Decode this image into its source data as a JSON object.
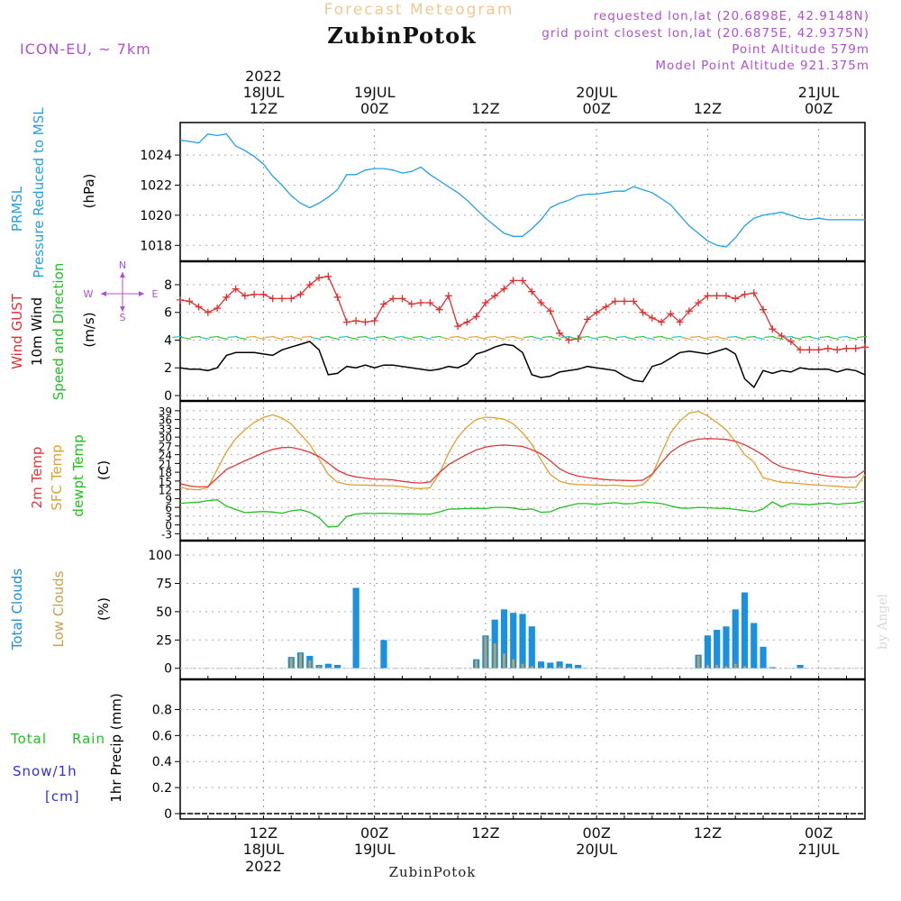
{
  "header": {
    "title": "Forecast Meteogram",
    "location": "ZubinPotok",
    "model": "ICON-EU, ~ 7km",
    "requested": "requested lon,lat (20.6898E, 42.9148N)",
    "closest": "grid point closest lon,lat (20.6875E, 42.9375N)",
    "point_alt": "Point Altitude 579m",
    "model_alt": "Model Point Altitude 921.375m",
    "footer_location": "ZubinPotok",
    "watermark": "by Angel"
  },
  "time_axis": {
    "top_labels": [
      {
        "l1": "2022",
        "l2": "18JUL",
        "l3": "12Z"
      },
      {
        "l1": "",
        "l2": "19JUL",
        "l3": "00Z"
      },
      {
        "l1": "",
        "l2": "",
        "l3": "12Z"
      },
      {
        "l1": "",
        "l2": "20JUL",
        "l3": "00Z"
      },
      {
        "l1": "",
        "l2": "",
        "l3": "12Z"
      },
      {
        "l1": "",
        "l2": "21JUL",
        "l3": "00Z"
      }
    ],
    "bottom_labels": [
      {
        "l1": "12Z",
        "l2": "18JUL",
        "l3": "2022"
      },
      {
        "l1": "00Z",
        "l2": "19JUL",
        "l3": ""
      },
      {
        "l1": "12Z",
        "l2": "",
        "l3": ""
      },
      {
        "l1": "00Z",
        "l2": "20JUL",
        "l3": ""
      },
      {
        "l1": "12Z",
        "l2": "",
        "l3": ""
      },
      {
        "l1": "00Z",
        "l2": "21JUL",
        "l3": ""
      }
    ],
    "tick_hours": [
      12,
      24,
      36,
      48,
      60,
      72
    ],
    "hour_range": [
      3,
      77
    ]
  },
  "colors": {
    "pressure": "#22a0e6",
    "gust": "#e03030",
    "wind": "#000000",
    "t2m": "#e03838",
    "sfc": "#e0a030",
    "dew": "#20c020",
    "total_clouds": "#1a90e0",
    "low_clouds": "#c8a050",
    "rain": "#20c020",
    "snow": "#3030e0",
    "violet": "#b050d0"
  },
  "chart_data": [
    {
      "type": "line",
      "panel": "pressure",
      "labels": {
        "l1": "PRMSL",
        "l2": "Pressure Reduced to MSL",
        "unit": "(hPa)"
      },
      "ylim": [
        1017.3,
        1025.8
      ],
      "yticks": [
        1018,
        1020,
        1022,
        1024
      ],
      "x": [
        3,
        4,
        5,
        6,
        7,
        8,
        9,
        10,
        11,
        12,
        13,
        14,
        15,
        16,
        17,
        18,
        19,
        20,
        21,
        22,
        23,
        24,
        25,
        26,
        27,
        28,
        29,
        30,
        31,
        32,
        33,
        34,
        35,
        36,
        37,
        38,
        39,
        40,
        41,
        42,
        43,
        44,
        45,
        46,
        47,
        48,
        49,
        50,
        51,
        52,
        53,
        54,
        55,
        56,
        57,
        58,
        59,
        60,
        61,
        62,
        63,
        64,
        65,
        66,
        67,
        68,
        69,
        70,
        71,
        72,
        73,
        74,
        75,
        76,
        77
      ],
      "values": [
        1025.0,
        1024.9,
        1024.8,
        1025.4,
        1025.3,
        1025.4,
        1024.6,
        1024.3,
        1023.9,
        1023.4,
        1022.6,
        1022.0,
        1021.3,
        1020.8,
        1020.5,
        1020.8,
        1021.2,
        1021.7,
        1022.7,
        1022.7,
        1023.0,
        1023.1,
        1023.1,
        1023.0,
        1022.8,
        1022.9,
        1023.2,
        1022.7,
        1022.3,
        1021.9,
        1021.5,
        1021.0,
        1020.4,
        1019.8,
        1019.3,
        1018.8,
        1018.6,
        1018.6,
        1019.1,
        1019.7,
        1020.5,
        1020.8,
        1021.0,
        1021.3,
        1021.4,
        1021.4,
        1021.5,
        1021.6,
        1021.6,
        1021.9,
        1021.7,
        1021.5,
        1021.1,
        1020.7,
        1020.0,
        1019.3,
        1018.8,
        1018.3,
        1018.0,
        1017.9,
        1018.5,
        1019.3,
        1019.8,
        1020.0,
        1020.1,
        1020.2,
        1020.0,
        1019.8,
        1019.7,
        1019.8,
        1019.7,
        1019.7,
        1019.7,
        1019.7,
        1019.7
      ]
    },
    {
      "type": "line",
      "panel": "wind",
      "labels": {
        "gust": "Wind GUST",
        "wind": "10m Wind",
        "speed": "Speed and Direction",
        "unit": "(m/s)",
        "compass_n": "N",
        "compass_s": "S",
        "compass_w": "W",
        "compass_e": "E"
      },
      "ylim": [
        0,
        9.3
      ],
      "yticks": [
        0,
        2,
        4,
        6,
        8
      ],
      "x": [
        3,
        4,
        5,
        6,
        7,
        8,
        9,
        10,
        11,
        12,
        13,
        14,
        15,
        16,
        17,
        18,
        19,
        20,
        21,
        22,
        23,
        24,
        25,
        26,
        27,
        28,
        29,
        30,
        31,
        32,
        33,
        34,
        35,
        36,
        37,
        38,
        39,
        40,
        41,
        42,
        43,
        44,
        45,
        46,
        47,
        48,
        49,
        50,
        51,
        52,
        53,
        54,
        55,
        56,
        57,
        58,
        59,
        60,
        61,
        62,
        63,
        64,
        65,
        66,
        67,
        68,
        69,
        70,
        71,
        72,
        73,
        74,
        75,
        76,
        77
      ],
      "series": [
        {
          "name": "Wind GUST",
          "values": [
            6.9,
            6.8,
            6.4,
            6.0,
            6.3,
            7.1,
            7.7,
            7.2,
            7.3,
            7.3,
            7.0,
            7.0,
            7.0,
            7.3,
            8.0,
            8.5,
            8.6,
            7.1,
            5.3,
            5.4,
            5.3,
            5.4,
            6.6,
            7.0,
            7.0,
            6.6,
            6.7,
            6.7,
            6.2,
            7.2,
            5.0,
            5.3,
            5.7,
            6.7,
            7.2,
            7.7,
            8.3,
            8.3,
            7.5,
            6.7,
            6.1,
            4.5,
            4.0,
            4.1,
            5.5,
            6.0,
            6.4,
            6.8,
            6.8,
            6.8,
            6.0,
            5.6,
            5.3,
            5.9,
            5.3,
            6.1,
            6.7,
            7.2,
            7.2,
            7.2,
            7.0,
            7.3,
            7.4,
            6.2,
            4.8,
            4.3,
            3.9,
            3.3,
            3.3,
            3.3,
            3.4,
            3.3,
            3.4,
            3.4,
            3.5
          ]
        },
        {
          "name": "10m Wind",
          "values": [
            2.0,
            1.9,
            1.9,
            1.8,
            2.0,
            2.9,
            3.1,
            3.1,
            3.1,
            3.0,
            2.9,
            3.3,
            3.5,
            3.7,
            3.9,
            3.3,
            1.5,
            1.6,
            2.1,
            2.0,
            2.2,
            2.0,
            2.2,
            2.2,
            2.1,
            2.0,
            1.9,
            1.8,
            1.9,
            2.1,
            2.0,
            2.3,
            3.0,
            3.2,
            3.5,
            3.7,
            3.6,
            3.1,
            1.5,
            1.3,
            1.4,
            1.7,
            1.8,
            1.9,
            2.1,
            2.0,
            1.9,
            1.8,
            1.4,
            1.1,
            1.0,
            2.1,
            2.3,
            2.7,
            3.1,
            3.2,
            3.1,
            3.0,
            3.2,
            3.4,
            3.0,
            1.2,
            0.6,
            1.8,
            1.6,
            1.8,
            1.7,
            2.0,
            1.9,
            1.9,
            1.9,
            1.7,
            1.9,
            1.8,
            1.5
          ]
        }
      ]
    },
    {
      "type": "line",
      "panel": "temperature",
      "labels": {
        "t2m": "2m Temp",
        "sfc": "SFC Temp",
        "dew": "dewpt Temp",
        "unit": "(C)"
      },
      "ylim": [
        -3.5,
        40.5
      ],
      "yticks": [
        -3,
        0,
        3,
        6,
        9,
        12,
        15,
        18,
        21,
        24,
        27,
        30,
        33,
        36,
        39
      ],
      "x": [
        3,
        4,
        5,
        6,
        7,
        8,
        9,
        10,
        11,
        12,
        13,
        14,
        15,
        16,
        17,
        18,
        19,
        20,
        21,
        22,
        23,
        24,
        25,
        26,
        27,
        28,
        29,
        30,
        31,
        32,
        33,
        34,
        35,
        36,
        37,
        38,
        39,
        40,
        41,
        42,
        43,
        44,
        45,
        46,
        47,
        48,
        49,
        50,
        51,
        52,
        53,
        54,
        55,
        56,
        57,
        58,
        59,
        60,
        61,
        62,
        63,
        64,
        65,
        66,
        67,
        68,
        69,
        70,
        71,
        72,
        73,
        74,
        75,
        76,
        77
      ],
      "series": [
        {
          "name": "2m Temp",
          "values": [
            14.1,
            13.3,
            13.0,
            13.1,
            16.0,
            19.0,
            20.4,
            21.9,
            23.3,
            24.7,
            25.8,
            26.4,
            26.5,
            25.8,
            24.8,
            23.4,
            21.1,
            18.7,
            17.2,
            16.4,
            16.0,
            15.6,
            15.6,
            15.4,
            14.9,
            14.5,
            14.3,
            14.7,
            17.9,
            20.6,
            22.4,
            24.1,
            25.6,
            26.6,
            27.1,
            27.3,
            27.1,
            26.8,
            25.7,
            24.3,
            21.9,
            19.2,
            17.6,
            16.7,
            16.2,
            15.8,
            15.5,
            15.3,
            15.2,
            15.1,
            15.3,
            17.3,
            21.2,
            24.8,
            27.0,
            28.5,
            29.3,
            29.5,
            29.4,
            29.2,
            28.6,
            27.4,
            25.7,
            23.9,
            21.4,
            19.8,
            19.0,
            18.4,
            17.7,
            17.2,
            16.7,
            16.4,
            16.2,
            16.4,
            18.7
          ]
        },
        {
          "name": "SFC Temp",
          "values": [
            12.9,
            12.2,
            12.0,
            12.8,
            19.0,
            25.0,
            29.5,
            32.5,
            35.0,
            36.7,
            37.6,
            36.5,
            34.5,
            31.0,
            27.5,
            22.5,
            17.3,
            14.6,
            13.9,
            13.6,
            13.6,
            13.5,
            13.4,
            13.4,
            13.1,
            12.6,
            12.4,
            12.7,
            17.5,
            24.5,
            30.0,
            33.5,
            36.0,
            36.8,
            36.6,
            36.1,
            34.5,
            31.5,
            27.5,
            22.2,
            17.2,
            14.9,
            14.1,
            13.8,
            13.7,
            13.6,
            13.5,
            13.6,
            13.3,
            13.2,
            13.7,
            17.0,
            24.5,
            31.5,
            35.5,
            38.2,
            38.8,
            37.2,
            35.0,
            32.5,
            28.5,
            24.0,
            21.5,
            16.1,
            15.3,
            14.5,
            14.4,
            14.1,
            13.8,
            13.6,
            13.4,
            13.2,
            12.9,
            12.8,
            17.2
          ]
        },
        {
          "name": "dewpt Temp",
          "values": [
            7.4,
            7.6,
            7.8,
            8.3,
            8.6,
            6.4,
            5.3,
            4.2,
            4.4,
            4.6,
            4.4,
            4.0,
            4.8,
            5.2,
            4.3,
            2.5,
            -0.7,
            -0.5,
            2.9,
            3.7,
            4.0,
            3.9,
            4.0,
            3.9,
            3.8,
            3.8,
            3.7,
            3.7,
            4.4,
            5.4,
            5.5,
            5.6,
            5.7,
            5.6,
            6.0,
            6.0,
            5.8,
            5.2,
            5.5,
            4.3,
            4.5,
            5.8,
            6.6,
            7.3,
            7.3,
            7.0,
            7.4,
            7.6,
            7.2,
            7.3,
            7.9,
            7.6,
            7.3,
            6.5,
            5.8,
            5.7,
            6.0,
            5.9,
            5.7,
            5.7,
            5.3,
            4.9,
            4.5,
            5.5,
            7.9,
            6.2,
            7.3,
            7.1,
            6.9,
            7.2,
            7.5,
            7.0,
            7.4,
            7.5,
            8.2
          ]
        }
      ]
    },
    {
      "type": "bar",
      "panel": "clouds",
      "labels": {
        "total": "Total Clouds",
        "low": "Low Clouds",
        "unit": "(%)"
      },
      "ylim": [
        -5,
        108
      ],
      "yticks": [
        0,
        25,
        50,
        75,
        100
      ],
      "x": [
        3,
        4,
        5,
        6,
        7,
        8,
        9,
        10,
        11,
        12,
        13,
        14,
        15,
        16,
        17,
        18,
        19,
        20,
        21,
        22,
        23,
        24,
        25,
        26,
        27,
        28,
        29,
        30,
        31,
        32,
        33,
        34,
        35,
        36,
        37,
        38,
        39,
        40,
        41,
        42,
        43,
        44,
        45,
        46,
        47,
        48,
        49,
        50,
        51,
        52,
        53,
        54,
        55,
        56,
        57,
        58,
        59,
        60,
        61,
        62,
        63,
        64,
        65,
        66,
        67,
        68,
        69,
        70,
        71,
        72,
        73,
        74,
        75,
        76,
        77
      ],
      "series": [
        {
          "name": "Total Clouds",
          "values": [
            0,
            0,
            0,
            0,
            0,
            0,
            0,
            0,
            0,
            0,
            0,
            0,
            10,
            14,
            11,
            3,
            4,
            3,
            0,
            71,
            0,
            0,
            25,
            0,
            0,
            0,
            0,
            0,
            0,
            0,
            0,
            0,
            8,
            29,
            43,
            52,
            49,
            48,
            37,
            6,
            5,
            6,
            4,
            3,
            0,
            0,
            0,
            0,
            0,
            0,
            0,
            0,
            0,
            0,
            0,
            0,
            12,
            29,
            34,
            37,
            52,
            67,
            40,
            19,
            1,
            0,
            0,
            3,
            0,
            0,
            0,
            0,
            0,
            0,
            0
          ]
        },
        {
          "name": "Low Clouds",
          "values": [
            0,
            0,
            0,
            0,
            0,
            0,
            0,
            0,
            0,
            0,
            0,
            0,
            9,
            13,
            7,
            2,
            1,
            0,
            0,
            0,
            0,
            0,
            0,
            0,
            0,
            0,
            0,
            0,
            0,
            0,
            0,
            0,
            7,
            28,
            22,
            13,
            8,
            4,
            2,
            1,
            0,
            2,
            1,
            0,
            0,
            0,
            0,
            0,
            0,
            0,
            0,
            0,
            0,
            0,
            0,
            0,
            11,
            3,
            3,
            2,
            4,
            2,
            0,
            0,
            0,
            0,
            0,
            0,
            0,
            0,
            0,
            0,
            0,
            0,
            0
          ]
        }
      ]
    },
    {
      "type": "bar",
      "panel": "precip",
      "labels": {
        "total": "Total",
        "rain": "Rain",
        "snow": "Snow/1h",
        "cm": "[cm]",
        "axis": "1hr Precip (mm)"
      },
      "ylim": [
        0,
        0.99
      ],
      "yticks": [
        0,
        0.2,
        0.4,
        0.6,
        0.8
      ],
      "x": [
        3,
        77
      ],
      "values": [
        0,
        0
      ]
    }
  ]
}
